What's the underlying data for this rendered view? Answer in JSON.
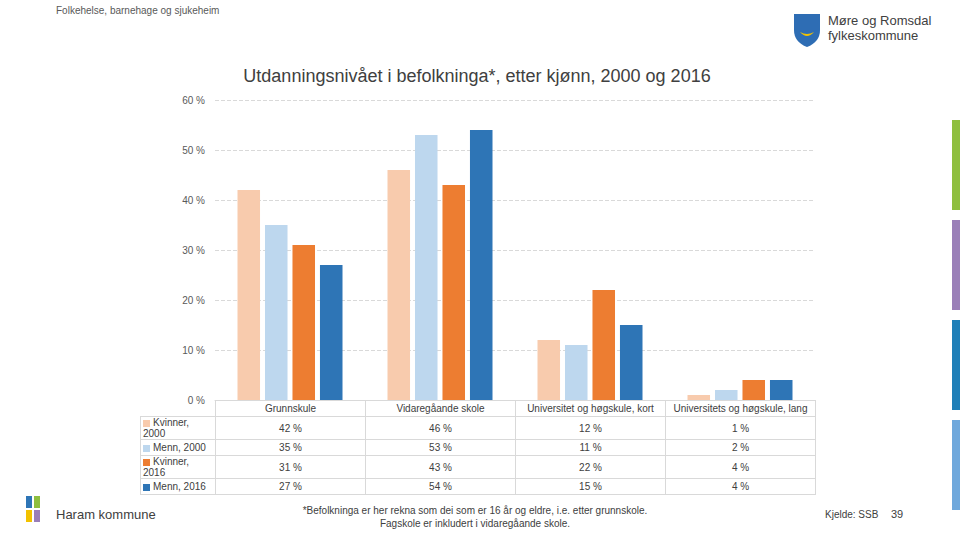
{
  "page": {
    "header": "Folkehelse, barnehage og sjukeheim",
    "organisation": [
      "Møre og Romsdal",
      "fylkeskommune"
    ],
    "municipality": "Haram kommune",
    "footnote": [
      "*Befolkninga er her rekna som dei som er 16 år og eldre, i.e. etter grunnskole.",
      "Fagskole er inkludert i vidaregåande skole."
    ],
    "source": "Kjelde: SSB",
    "page_number": 39
  },
  "chart_data": {
    "type": "bar",
    "title": "Utdanningsnivået i befolkninga*, etter kjønn, 2000 og 2016",
    "categories": [
      "Grunnskule",
      "Vidaregåande skole",
      "Universitet og høgskule, kort",
      "Universitets og høgskule, lang"
    ],
    "series": [
      {
        "name": "Kvinner, 2000",
        "color": "#f8cbad",
        "values": [
          42,
          46,
          12,
          1
        ],
        "value_labels": [
          "42 %",
          "46 %",
          "12 %",
          "1 %"
        ]
      },
      {
        "name": "Menn, 2000",
        "color": "#bdd7ee",
        "values": [
          35,
          53,
          11,
          2
        ],
        "value_labels": [
          "35 %",
          "53 %",
          "11 %",
          "2 %"
        ]
      },
      {
        "name": "Kvinner, 2016",
        "color": "#ed7d31",
        "values": [
          31,
          43,
          22,
          4
        ],
        "value_labels": [
          "31 %",
          "43 %",
          "22 %",
          "4 %"
        ]
      },
      {
        "name": "Menn, 2016",
        "color": "#2e75b6",
        "values": [
          27,
          54,
          15,
          4
        ],
        "value_labels": [
          "27 %",
          "54 %",
          "15 %",
          "4 %"
        ]
      }
    ],
    "ylim": [
      0,
      60
    ],
    "yticks": [
      {
        "value": 0,
        "label": "0 %"
      },
      {
        "value": 10,
        "label": "10 %"
      },
      {
        "value": 20,
        "label": "20 %"
      },
      {
        "value": 30,
        "label": "30 %"
      },
      {
        "value": 40,
        "label": "40 %"
      },
      {
        "value": 50,
        "label": "50 %"
      },
      {
        "value": 60,
        "label": "60 %"
      }
    ],
    "grid": true
  }
}
